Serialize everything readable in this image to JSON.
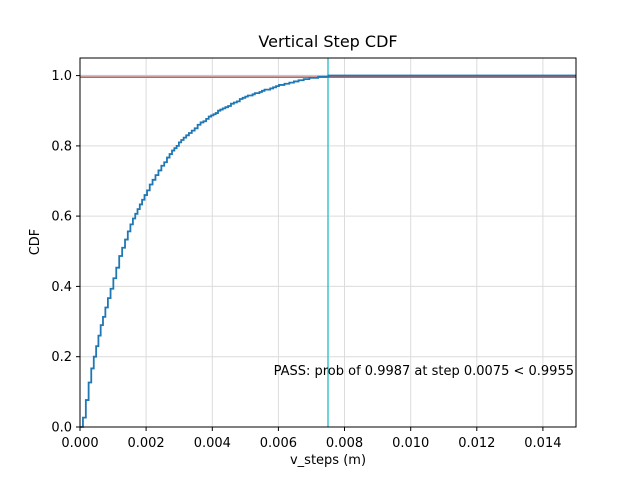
{
  "figure": {
    "background": "#ffffff"
  },
  "chart_data": {
    "type": "line",
    "subtype": "empirical-step-cdf",
    "title": "Vertical Step CDF",
    "xlabel": "v_steps (m)",
    "ylabel": "CDF",
    "xlim": [
      0,
      0.015
    ],
    "ylim": [
      0,
      1.05
    ],
    "grid": true,
    "grid_color": "#dcdcdc",
    "x_tick_values": [
      0,
      0.002,
      0.004,
      0.006,
      0.008,
      0.01,
      0.012,
      0.014
    ],
    "x_tick_labels": [
      "0.000",
      "0.002",
      "0.004",
      "0.006",
      "0.008",
      "0.010",
      "0.012",
      "0.014"
    ],
    "y_tick_values": [
      0,
      0.2,
      0.4,
      0.6,
      0.8,
      1.0
    ],
    "y_tick_labels": [
      "0.0",
      "0.2",
      "0.4",
      "0.6",
      "0.8",
      "1.0"
    ],
    "series": [
      {
        "name": "vertical-step-cdf",
        "color": "#1f77b4",
        "line_style": "step",
        "points": [
          [
            0.0,
            0.0
          ],
          [
            0.0001,
            0.03
          ],
          [
            0.0003,
            0.15
          ],
          [
            0.0006,
            0.28
          ],
          [
            0.0009,
            0.385
          ],
          [
            0.0012,
            0.49
          ],
          [
            0.0015,
            0.572
          ],
          [
            0.0018,
            0.633
          ],
          [
            0.0021,
            0.688
          ],
          [
            0.0024,
            0.735
          ],
          [
            0.0028,
            0.789
          ],
          [
            0.0032,
            0.83
          ],
          [
            0.0036,
            0.862
          ],
          [
            0.004,
            0.889
          ],
          [
            0.0045,
            0.916
          ],
          [
            0.005,
            0.94
          ],
          [
            0.0055,
            0.956
          ],
          [
            0.006,
            0.972
          ],
          [
            0.0065,
            0.984
          ],
          [
            0.007,
            0.9935
          ],
          [
            0.0075,
            0.9987
          ],
          [
            0.008,
            0.9993
          ],
          [
            0.009,
            0.9997
          ],
          [
            0.0105,
            0.9999
          ],
          [
            0.015,
            1.0
          ]
        ]
      }
    ],
    "reference_lines": [
      {
        "name": "asymptote-line",
        "orientation": "horizontal",
        "value": 1.0,
        "color": "#aed0dd"
      },
      {
        "name": "threshold-line",
        "orientation": "horizontal",
        "value": 0.9955,
        "color": "#dd5a4c"
      },
      {
        "name": "step-marker-line",
        "orientation": "vertical",
        "value": 0.0075,
        "color": "#2fc1c9"
      }
    ]
  },
  "annotation": {
    "text": "PASS: prob of 0.9987 at step 0.0075 < 0.9955",
    "color": "#108810",
    "status": "PASS",
    "prob": "0.9987",
    "step": "0.0075",
    "threshold": "0.9955"
  }
}
